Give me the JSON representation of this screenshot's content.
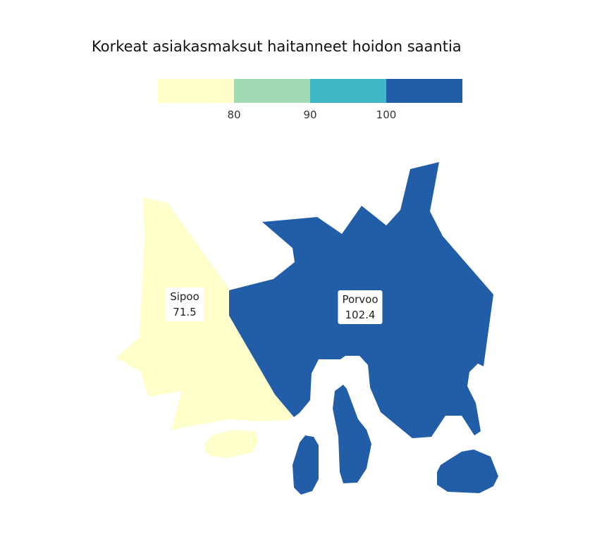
{
  "title": "Korkeat asiakasmaksut haitanneet hoidon saantia",
  "legend": {
    "colors": [
      "#ffffcc",
      "#a1dab4",
      "#41b6c4",
      "#225ea8"
    ],
    "ticks": [
      "80",
      "90",
      "100"
    ]
  },
  "regions": [
    {
      "name": "Sipoo",
      "value": "71.5",
      "color": "#ffffcc"
    },
    {
      "name": "Porvoo",
      "value": "102.4",
      "color": "#225ea8"
    }
  ]
}
